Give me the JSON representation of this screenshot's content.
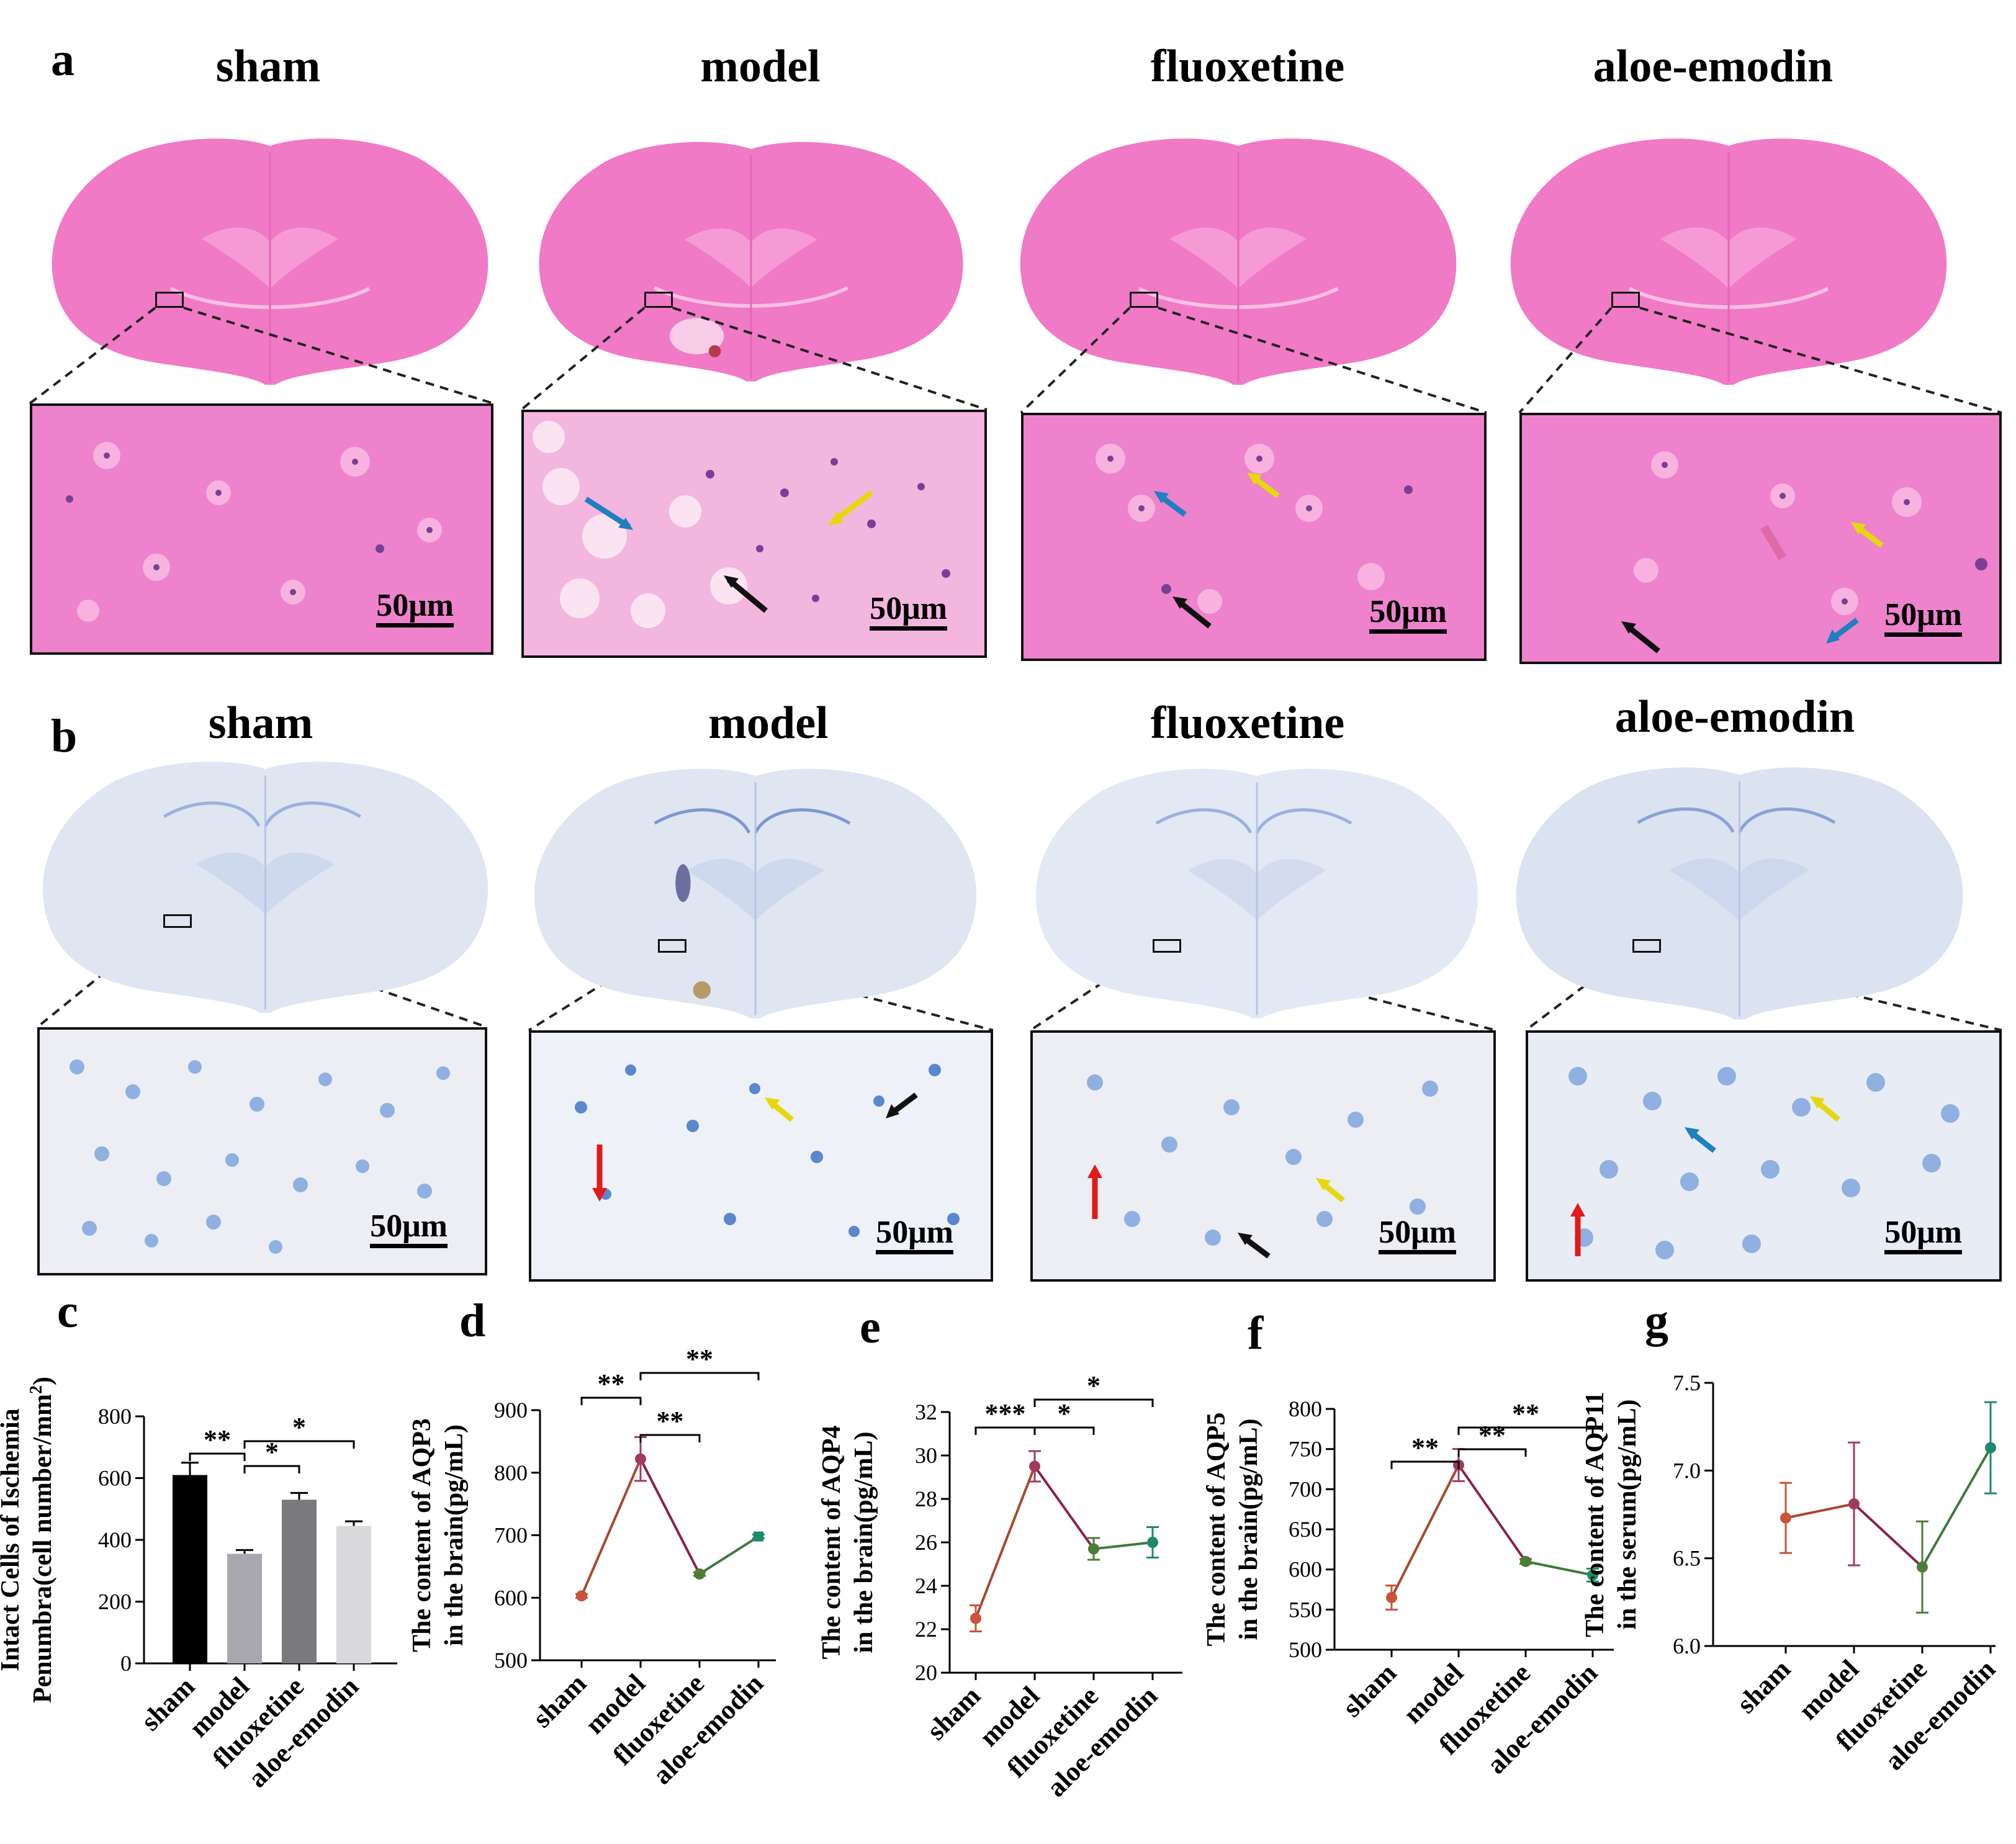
{
  "row_a": {
    "letter": "a",
    "titles": [
      "sham",
      "model",
      "fluoxetine",
      "aloe-emodin"
    ],
    "scale": "50μm",
    "stain_color": "#f07ac6",
    "stain_dark": "#c9449f"
  },
  "row_b": {
    "letter": "b",
    "titles": [
      "sham",
      "model",
      "fluoxetine",
      "aloe-emodin"
    ],
    "scale": "50μm",
    "stain_color": "#dfe6f2",
    "stain_dark": "#7d97cf"
  },
  "chart_data": [
    {
      "panel": "c",
      "type": "bar",
      "ylabel_line1": "Intact Cells of Ischemia",
      "ylabel_line2": "Penumbra(cell number/mm",
      "ylabel_sup": "2",
      "ylabel_close": ")",
      "categories": [
        "sham",
        "model",
        "fluoxetine",
        "aloe-emodin"
      ],
      "values": [
        610,
        355,
        530,
        445
      ],
      "errors": [
        40,
        12,
        22,
        15
      ],
      "colors": [
        "#000000",
        "#a7a7ad",
        "#7a7a7e",
        "#d9d9db"
      ],
      "ylim": [
        0,
        800
      ],
      "yticks": [
        "0",
        "200",
        "400",
        "600",
        "800"
      ],
      "significance": [
        "**",
        "*",
        "*"
      ]
    },
    {
      "panel": "d",
      "type": "line",
      "ylabel_line1": "The content of AQP3",
      "ylabel_line2": "in the brain(pg/mL)",
      "categories": [
        "sham",
        "model",
        "fluoxetine",
        "aloe-emodin"
      ],
      "values": [
        603,
        822,
        638,
        698
      ],
      "errors": [
        3,
        35,
        3,
        3
      ],
      "ylim": [
        500,
        900
      ],
      "yticks": [
        "500",
        "600",
        "700",
        "800",
        "900"
      ],
      "significance": [
        "**",
        "**",
        "**"
      ]
    },
    {
      "panel": "e",
      "type": "line",
      "ylabel_line1": "The content of AQP4",
      "ylabel_line2": "in the brain(pg/mL)",
      "categories": [
        "sham",
        "model",
        "fluoxetine",
        "aloe-emodin"
      ],
      "values": [
        22.5,
        29.5,
        25.7,
        26.0
      ],
      "errors": [
        0.6,
        0.7,
        0.5,
        0.7
      ],
      "ylim": [
        20,
        32
      ],
      "yticks": [
        "20",
        "22",
        "24",
        "26",
        "28",
        "30",
        "32"
      ],
      "significance": [
        "***",
        "*",
        "*"
      ]
    },
    {
      "panel": "f",
      "type": "line",
      "ylabel_line1": "The content of AQP5",
      "ylabel_line2": "in the brain(pg/mL)",
      "categories": [
        "sham",
        "model",
        "fluoxetine",
        "aloe-emodin"
      ],
      "values": [
        565,
        730,
        610,
        593
      ],
      "errors": [
        15,
        20,
        3,
        8
      ],
      "ylim": [
        500,
        800
      ],
      "yticks": [
        "500",
        "550",
        "600",
        "650",
        "700",
        "750",
        "800"
      ],
      "significance": [
        "**",
        "**",
        "**"
      ]
    },
    {
      "panel": "g",
      "type": "line",
      "ylabel_line1": "The content of AQP11",
      "ylabel_line2": "in the serum(pg/mL)",
      "categories": [
        "sham",
        "model",
        "fluoxetine",
        "aloe-emodin"
      ],
      "values": [
        6.73,
        6.81,
        6.45,
        7.13
      ],
      "errors": [
        0.2,
        0.35,
        0.26,
        0.26
      ],
      "ylim": [
        6.0,
        7.5
      ],
      "yticks": [
        "6.0",
        "6.5",
        "7.0",
        "7.5"
      ],
      "significance": []
    }
  ],
  "line_colors": {
    "sham": "#c8553a",
    "model": "#a23a5e",
    "fluoxetine": "#4e7c36",
    "aloe-emodin": "#1f8a6b",
    "seg1": "#a8472d",
    "seg2": "#8a2342",
    "seg3": "#3f7a3f"
  }
}
